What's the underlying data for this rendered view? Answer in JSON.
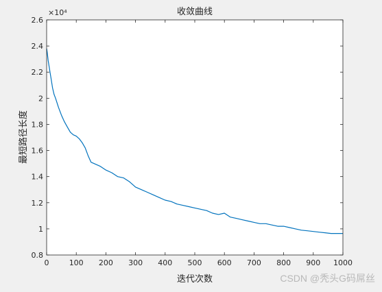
{
  "figure": {
    "background": "#f0f0f0",
    "plot_background": "#ffffff"
  },
  "watermark": "CSDN @秃头G码屌丝",
  "chart_data": {
    "type": "line",
    "title": "收敛曲线",
    "xlabel": "迭代次数",
    "ylabel": "最短路径长度",
    "y_exponent_label": "×10⁴",
    "xlim": [
      0,
      1000
    ],
    "ylim": [
      0.8,
      2.6
    ],
    "xticks": [
      0,
      100,
      200,
      300,
      400,
      500,
      600,
      700,
      800,
      900,
      1000
    ],
    "yticks": [
      0.8,
      1,
      1.2,
      1.4,
      1.6,
      1.8,
      2,
      2.2,
      2.4,
      2.6
    ],
    "ytick_labels": [
      "0.8",
      "1",
      "1.2",
      "1.4",
      "1.6",
      "1.8",
      "2",
      "2.2",
      "2.4",
      "2.6"
    ],
    "grid": false,
    "series": [
      {
        "color": "#0072bd",
        "x": [
          0,
          2,
          5,
          10,
          15,
          20,
          25,
          30,
          40,
          50,
          60,
          70,
          80,
          90,
          100,
          110,
          120,
          130,
          140,
          150,
          160,
          180,
          200,
          220,
          240,
          260,
          280,
          300,
          320,
          340,
          360,
          380,
          400,
          420,
          440,
          460,
          480,
          500,
          520,
          540,
          560,
          580,
          600,
          620,
          640,
          660,
          680,
          700,
          720,
          740,
          760,
          780,
          800,
          820,
          840,
          860,
          880,
          900,
          920,
          940,
          960,
          980,
          1000
        ],
        "y": [
          2.38,
          2.35,
          2.29,
          2.22,
          2.15,
          2.08,
          2.03,
          2.0,
          1.93,
          1.87,
          1.82,
          1.78,
          1.74,
          1.72,
          1.71,
          1.69,
          1.66,
          1.62,
          1.56,
          1.51,
          1.5,
          1.48,
          1.45,
          1.43,
          1.4,
          1.39,
          1.36,
          1.32,
          1.3,
          1.28,
          1.26,
          1.24,
          1.22,
          1.21,
          1.19,
          1.18,
          1.17,
          1.16,
          1.15,
          1.14,
          1.12,
          1.11,
          1.12,
          1.09,
          1.08,
          1.07,
          1.06,
          1.05,
          1.04,
          1.04,
          1.03,
          1.02,
          1.02,
          1.01,
          1.0,
          0.99,
          0.985,
          0.98,
          0.975,
          0.97,
          0.965,
          0.965,
          0.965
        ]
      }
    ]
  }
}
